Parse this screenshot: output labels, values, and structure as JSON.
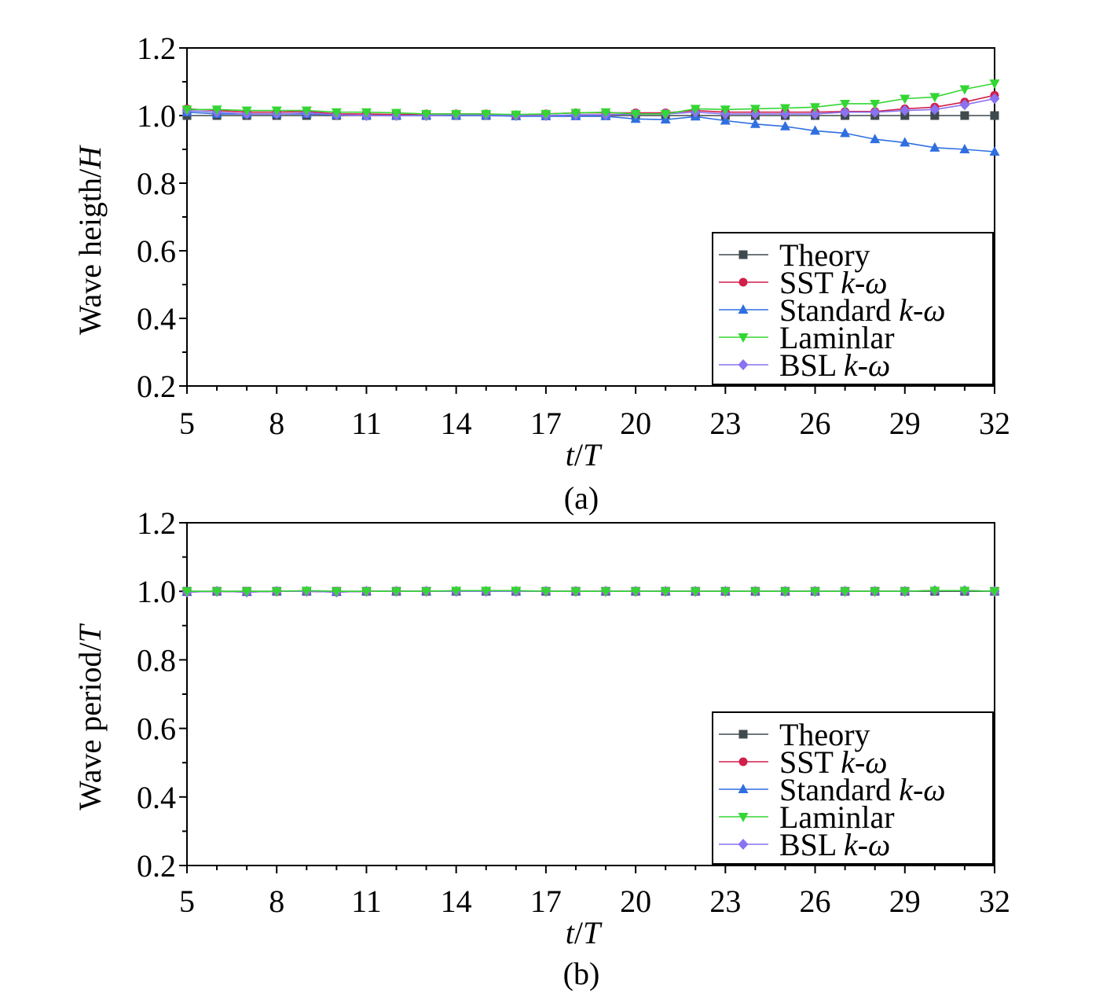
{
  "legend_items": [
    {
      "label": "Theory",
      "marker": "square",
      "color": "#3f4a4f"
    },
    {
      "label": "SST ",
      "label_italic": "k-ω",
      "marker": "circle",
      "color": "#d11f4a"
    },
    {
      "label": "Standard ",
      "label_italic": "k-ω",
      "marker": "triangle-up",
      "color": "#2f6fe0"
    },
    {
      "label": "Laminlar",
      "marker": "triangle-down",
      "color": "#33d633"
    },
    {
      "label": "BSL ",
      "label_italic": "k-ω",
      "marker": "diamond",
      "color": "#8a72f0"
    }
  ],
  "chart_data": [
    {
      "type": "line",
      "caption": "(a)",
      "xlabel_italic_1": "t",
      "xlabel_sep": "/",
      "xlabel_italic_2": "T",
      "ylabel": "Wave heigth/",
      "ylabel_italic": "H",
      "xlim": [
        5,
        32
      ],
      "ylim": [
        0.2,
        1.2
      ],
      "x_ticks": [
        5,
        8,
        11,
        14,
        17,
        20,
        23,
        26,
        29,
        32
      ],
      "y_ticks": [
        "0.2",
        "0.4",
        "0.6",
        "0.8",
        "1.0",
        "1.2"
      ],
      "x": [
        5,
        6,
        7,
        8,
        9,
        10,
        11,
        12,
        13,
        14,
        15,
        16,
        17,
        18,
        19,
        20,
        21,
        22,
        23,
        24,
        25,
        26,
        27,
        28,
        29,
        30,
        31,
        32
      ],
      "series": [
        {
          "name": "Theory",
          "values": [
            1.0,
            1.0,
            1.0,
            1.0,
            1.0,
            1.0,
            1.0,
            1.0,
            1.0,
            1.0,
            1.0,
            1.0,
            1.0,
            1.0,
            1.0,
            1.0,
            1.0,
            1.0,
            1.0,
            1.0,
            1.0,
            1.0,
            1.0,
            1.0,
            1.0,
            1.0,
            1.0,
            1.0
          ]
        },
        {
          "name": "SST k-ω",
          "values": [
            1.02,
            1.015,
            1.01,
            1.01,
            1.012,
            1.005,
            1.005,
            1.003,
            1.005,
            1.005,
            1.005,
            1.0,
            1.005,
            1.008,
            1.008,
            1.008,
            1.008,
            1.015,
            1.01,
            1.01,
            1.01,
            1.01,
            1.012,
            1.012,
            1.02,
            1.025,
            1.04,
            1.06
          ]
        },
        {
          "name": "Standard k-ω",
          "values": [
            1.01,
            1.005,
            1.005,
            1.005,
            1.005,
            1.002,
            1.0,
            1.0,
            1.0,
            1.0,
            1.0,
            0.998,
            0.998,
            0.998,
            0.998,
            0.99,
            0.988,
            0.997,
            0.985,
            0.975,
            0.968,
            0.955,
            0.948,
            0.93,
            0.92,
            0.905,
            0.9,
            0.893
          ]
        },
        {
          "name": "Laminlar",
          "values": [
            1.018,
            1.018,
            1.015,
            1.015,
            1.015,
            1.01,
            1.01,
            1.008,
            1.005,
            1.005,
            1.005,
            1.003,
            1.005,
            1.008,
            1.01,
            1.005,
            1.005,
            1.02,
            1.018,
            1.02,
            1.022,
            1.025,
            1.035,
            1.035,
            1.05,
            1.055,
            1.078,
            1.095
          ]
        },
        {
          "name": "BSL k-ω",
          "values": [
            1.015,
            1.01,
            1.005,
            1.005,
            1.008,
            1.002,
            1.0,
            1.0,
            1.0,
            1.002,
            1.002,
            1.0,
            1.0,
            1.002,
            1.002,
            1.005,
            1.005,
            1.01,
            1.005,
            1.005,
            1.005,
            1.005,
            1.01,
            1.01,
            1.015,
            1.018,
            1.032,
            1.05
          ]
        }
      ]
    },
    {
      "type": "line",
      "caption": "(b)",
      "xlabel_italic_1": "t",
      "xlabel_sep": "/",
      "xlabel_italic_2": "T",
      "ylabel": "Wave period/",
      "ylabel_italic": "T",
      "xlim": [
        5,
        32
      ],
      "ylim": [
        0.2,
        1.2
      ],
      "x_ticks": [
        5,
        8,
        11,
        14,
        17,
        20,
        23,
        26,
        29,
        32
      ],
      "y_ticks": [
        "0.2",
        "0.4",
        "0.6",
        "0.8",
        "1.0",
        "1.2"
      ],
      "x": [
        5,
        6,
        7,
        8,
        9,
        10,
        11,
        12,
        13,
        14,
        15,
        16,
        17,
        18,
        19,
        20,
        21,
        22,
        23,
        24,
        25,
        26,
        27,
        28,
        29,
        30,
        31,
        32
      ],
      "series": [
        {
          "name": "Theory",
          "values": [
            1.0,
            1.0,
            1.0,
            1.0,
            1.0,
            1.0,
            1.0,
            1.0,
            1.0,
            1.0,
            1.0,
            1.0,
            1.0,
            1.0,
            1.0,
            1.0,
            1.0,
            1.0,
            1.0,
            1.0,
            1.0,
            1.0,
            1.0,
            1.0,
            1.0,
            1.0,
            1.0,
            1.0
          ]
        },
        {
          "name": "SST k-ω",
          "values": [
            0.998,
            1.0,
            0.998,
            1.0,
            1.0,
            0.998,
            1.0,
            1.0,
            1.0,
            1.0,
            1.0,
            1.0,
            1.0,
            1.0,
            1.0,
            1.0,
            1.0,
            1.0,
            1.0,
            1.0,
            1.0,
            1.0,
            1.0,
            1.0,
            1.0,
            1.002,
            1.002,
            1.0
          ]
        },
        {
          "name": "Standard k-ω",
          "values": [
            0.998,
            1.0,
            0.998,
            1.0,
            1.0,
            0.998,
            1.0,
            1.0,
            1.0,
            1.0,
            1.0,
            1.0,
            1.0,
            1.0,
            1.0,
            1.0,
            1.0,
            1.0,
            1.0,
            1.0,
            1.0,
            1.0,
            1.0,
            1.0,
            1.0,
            1.002,
            1.002,
            1.0
          ]
        },
        {
          "name": "Laminlar",
          "values": [
            1.0,
            1.0,
            1.0,
            1.0,
            1.002,
            1.0,
            1.0,
            1.0,
            1.0,
            1.002,
            1.002,
            1.002,
            1.0,
            1.0,
            1.0,
            1.0,
            1.0,
            1.0,
            1.0,
            1.0,
            1.0,
            1.0,
            1.0,
            1.0,
            1.0,
            1.002,
            1.002,
            1.0
          ]
        },
        {
          "name": "BSL k-ω",
          "values": [
            0.998,
            1.0,
            0.998,
            1.0,
            1.0,
            0.998,
            1.0,
            1.0,
            1.0,
            1.0,
            1.0,
            1.0,
            1.0,
            1.0,
            1.0,
            1.0,
            1.0,
            1.0,
            1.0,
            1.0,
            1.0,
            1.0,
            1.0,
            1.0,
            1.0,
            1.002,
            1.002,
            1.0
          ]
        }
      ]
    }
  ]
}
